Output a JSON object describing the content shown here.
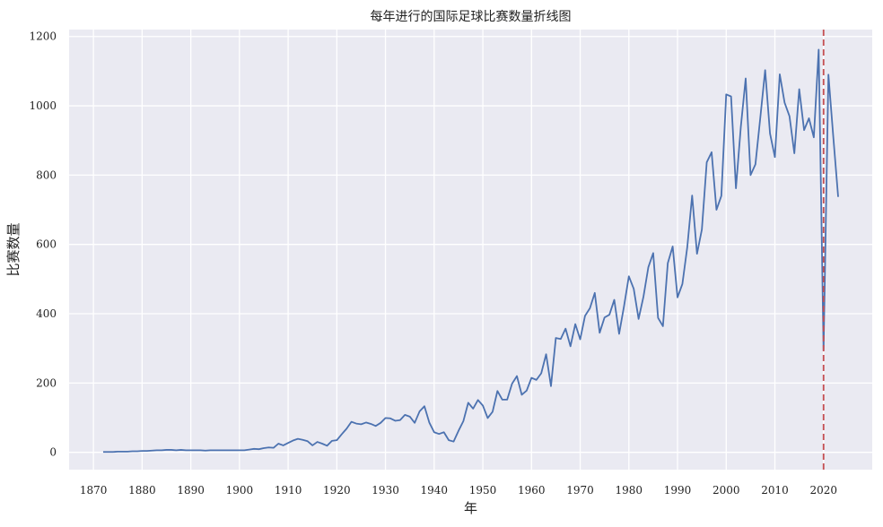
{
  "chart_data": {
    "type": "line",
    "title": "每年进行的国际足球比赛数量折线图",
    "xlabel": "年",
    "ylabel": "比赛数量",
    "xlim": [
      1865,
      2030
    ],
    "ylim": [
      -50,
      1220
    ],
    "xticks": [
      1870,
      1880,
      1890,
      1900,
      1910,
      1920,
      1930,
      1940,
      1950,
      1960,
      1970,
      1980,
      1990,
      2000,
      2010,
      2020
    ],
    "yticks": [
      0,
      200,
      400,
      600,
      800,
      1000,
      1200
    ],
    "grid": true,
    "background": "#EAEAF2",
    "line_color": "#4C72B0",
    "reference_line": {
      "x": 2020,
      "color": "#C44E52",
      "style": "dashed"
    },
    "series": [
      {
        "x": [
          1872,
          1873,
          1874,
          1875,
          1876,
          1877,
          1878,
          1879,
          1880,
          1881,
          1882,
          1883,
          1884,
          1885,
          1886,
          1887,
          1888,
          1889,
          1890,
          1891,
          1892,
          1893,
          1894,
          1895,
          1896,
          1897,
          1898,
          1899,
          1900,
          1901,
          1902,
          1903,
          1904,
          1905,
          1906,
          1907,
          1908,
          1909,
          1910,
          1911,
          1912,
          1913,
          1914,
          1915,
          1916,
          1917,
          1918,
          1919,
          1920,
          1921,
          1922,
          1923,
          1924,
          1925,
          1926,
          1927,
          1928,
          1929,
          1930,
          1931,
          1932,
          1933,
          1934,
          1935,
          1936,
          1937,
          1938,
          1939,
          1940,
          1941,
          1942,
          1943,
          1944,
          1945,
          1946,
          1947,
          1948,
          1949,
          1950,
          1951,
          1952,
          1953,
          1954,
          1955,
          1956,
          1957,
          1958,
          1959,
          1960,
          1961,
          1962,
          1963,
          1964,
          1965,
          1966,
          1967,
          1968,
          1969,
          1970,
          1971,
          1972,
          1973,
          1974,
          1975,
          1976,
          1977,
          1978,
          1979,
          1980,
          1981,
          1982,
          1983,
          1984,
          1985,
          1986,
          1987,
          1988,
          1989,
          1990,
          1991,
          1992,
          1993,
          1994,
          1995,
          1996,
          1997,
          1998,
          1999,
          2000,
          2001,
          2002,
          2003,
          2004,
          2005,
          2006,
          2007,
          2008,
          2009,
          2010,
          2011,
          2012,
          2013,
          2014,
          2015,
          2016,
          2017,
          2018,
          2019,
          2020,
          2021,
          2022,
          2023
        ],
        "values": [
          1,
          1,
          1,
          2,
          2,
          2,
          3,
          3,
          4,
          4,
          5,
          6,
          6,
          7,
          7,
          6,
          7,
          6,
          6,
          6,
          6,
          5,
          6,
          6,
          6,
          6,
          6,
          6,
          6,
          6,
          8,
          10,
          9,
          12,
          14,
          13,
          25,
          20,
          27,
          34,
          39,
          36,
          32,
          20,
          30,
          25,
          19,
          33,
          35,
          52,
          68,
          88,
          83,
          81,
          86,
          82,
          76,
          85,
          99,
          98,
          91,
          93,
          108,
          103,
          85,
          118,
          133,
          86,
          58,
          53,
          58,
          35,
          31,
          62,
          90,
          143,
          126,
          151,
          135,
          99,
          117,
          177,
          152,
          152,
          198,
          220,
          166,
          178,
          215,
          209,
          228,
          283,
          191,
          330,
          327,
          357,
          306,
          370,
          326,
          394,
          416,
          460,
          345,
          389,
          397,
          440,
          342,
          421,
          508,
          472,
          385,
          449,
          534,
          575,
          388,
          364,
          546,
          594,
          447,
          486,
          592,
          741,
          573,
          643,
          837,
          866,
          700,
          740,
          1033,
          1027,
          762,
          939,
          1079,
          800,
          831,
          965,
          1103,
          920,
          852,
          1091,
          1009,
          970,
          863,
          1048,
          930,
          964,
          909,
          1162,
          294,
          1090,
          910,
          737
        ]
      }
    ]
  }
}
